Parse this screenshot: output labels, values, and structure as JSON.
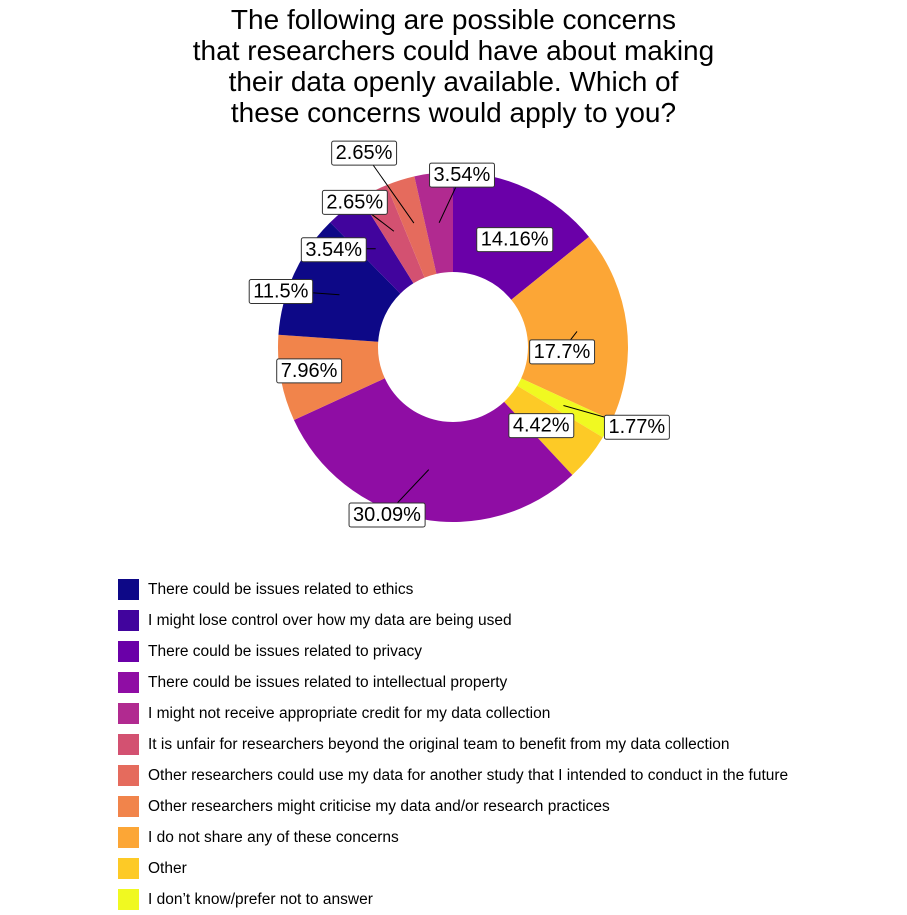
{
  "chart_data": {
    "type": "pie",
    "title_lines": [
      "The following are possible concerns",
      "that researchers could have about making",
      "their data openly available. Which of",
      "these concerns would apply to you?"
    ],
    "donut": true,
    "start_angle_deg": 0,
    "direction": "clockwise",
    "legend_position": "bottom",
    "slices": [
      {
        "name": "There could be issues related to privacy",
        "value": 14.16,
        "label": "14.16%",
        "color": "#6A00A8"
      },
      {
        "name": "I do not share any of these concerns",
        "value": 17.7,
        "label": "17.7%",
        "color": "#FCA636"
      },
      {
        "name": "I don't know/prefer not to answer",
        "value": 1.77,
        "label": "1.77%",
        "color": "#F0F921"
      },
      {
        "name": "Other",
        "value": 4.42,
        "label": "4.42%",
        "color": "#FDCA26"
      },
      {
        "name": "There could be issues related to intellectual property",
        "value": 30.09,
        "label": "30.09%",
        "color": "#8F0DA4"
      },
      {
        "name": "Other researchers might criticise my data and/or research practices",
        "value": 7.96,
        "label": "7.96%",
        "color": "#F1844B"
      },
      {
        "name": "There could be issues related to ethics",
        "value": 11.5,
        "label": "11.5%",
        "color": "#0D0887"
      },
      {
        "name": "I might lose control over how my data are being used",
        "value": 3.54,
        "label": "3.54%",
        "color": "#41049D"
      },
      {
        "name": "It is unfair for researchers beyond the original team to benefit from my data collection",
        "value": 2.65,
        "label": "2.65%",
        "color": "#D35171"
      },
      {
        "name": "Other researchers could use my data for another study that I intended to conduct in the future",
        "value": 2.65,
        "label": "2.65%",
        "color": "#E56B5D"
      },
      {
        "name": "I might not receive appropriate credit for my data collection",
        "value": 3.54,
        "label": "3.54%",
        "color": "#B12A90"
      }
    ],
    "legend": [
      {
        "label": "There could be issues related to ethics",
        "color": "#0D0887"
      },
      {
        "label": "I might lose control over how my data are being used",
        "color": "#41049D"
      },
      {
        "label": "There could be issues related to privacy",
        "color": "#6A00A8"
      },
      {
        "label": "There could be issues related to intellectual property",
        "color": "#8F0DA4"
      },
      {
        "label": "I might not receive appropriate credit for my data collection",
        "color": "#B12A90"
      },
      {
        "label": "It is unfair for researchers beyond the original team to benefit from my data collection",
        "color": "#D35171"
      },
      {
        "label": "Other researchers could use my data for another study that I intended to conduct in the future",
        "color": "#E56B5D"
      },
      {
        "label": "Other researchers might criticise my data and/or research practices",
        "color": "#F1844B"
      },
      {
        "label": "I do not share any of these concerns",
        "color": "#FCA636"
      },
      {
        "label": "Other",
        "color": "#FDCA26"
      },
      {
        "label": "I don’t know/prefer not to answer",
        "color": "#F0F921"
      }
    ]
  }
}
